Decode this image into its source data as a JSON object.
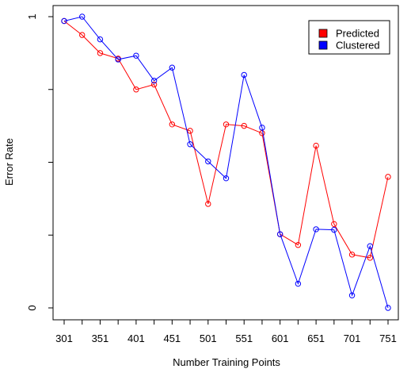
{
  "chart_data": {
    "type": "line",
    "xlabel": "Number Training Points",
    "ylabel": "Error Rate",
    "x": [
      301,
      326,
      351,
      376,
      401,
      426,
      451,
      476,
      501,
      526,
      551,
      576,
      601,
      626,
      651,
      676,
      701,
      726,
      751
    ],
    "x_tick_labels": [
      "301",
      "351",
      "401",
      "451",
      "501",
      "551",
      "601",
      "651",
      "701",
      "751"
    ],
    "y_tick_labels": [
      "0",
      "1"
    ],
    "ylim": [
      0,
      1
    ],
    "grid": false,
    "legend_position": "top-right",
    "series": [
      {
        "name": "Predicted",
        "color": "#ff0000",
        "values": [
          0.985,
          0.937,
          0.875,
          0.856,
          0.75,
          0.767,
          0.63,
          0.608,
          0.357,
          0.63,
          0.625,
          0.6,
          0.253,
          0.216,
          0.557,
          0.288,
          0.183,
          0.172,
          0.45
        ]
      },
      {
        "name": "Clustered",
        "color": "#0000ff",
        "values": [
          0.985,
          1.0,
          0.922,
          0.853,
          0.866,
          0.78,
          0.825,
          0.562,
          0.503,
          0.445,
          0.8,
          0.619,
          0.253,
          0.083,
          0.27,
          0.268,
          0.043,
          0.212,
          0.0
        ]
      }
    ]
  }
}
